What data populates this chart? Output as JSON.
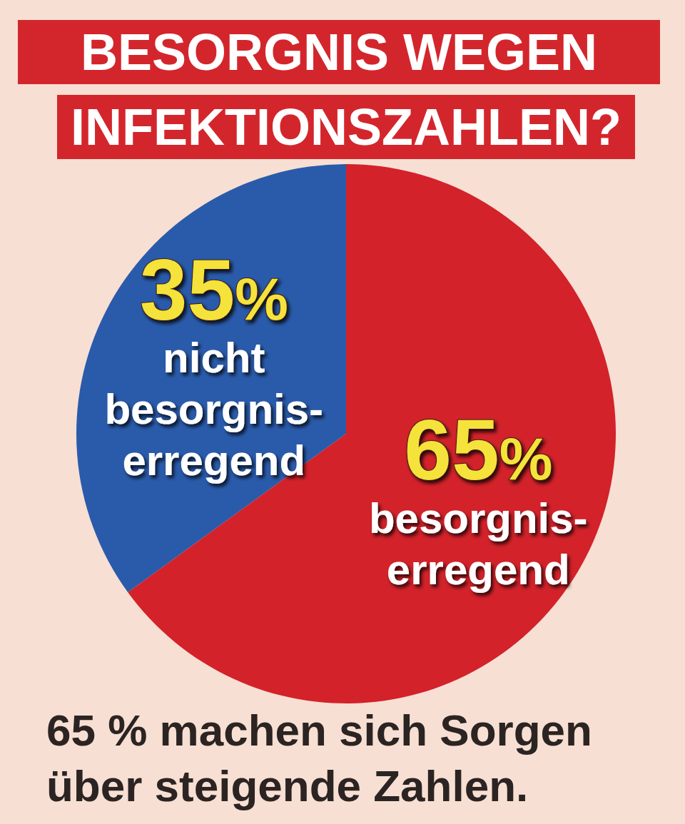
{
  "chart_data": {
    "type": "pie",
    "title": "BESORGNIS WEGEN INFEKTIONSZAHLEN?",
    "categories": [
      "nicht besorgnis-erregend",
      "besorgnis-erregend"
    ],
    "values": [
      35,
      65
    ],
    "colors": [
      "#2a5bab",
      "#d3222a"
    ],
    "value_labels": [
      "35%",
      "65%"
    ],
    "annotations": [
      "65 % machen sich Sorgen über steigende Zahlen."
    ]
  }
}
